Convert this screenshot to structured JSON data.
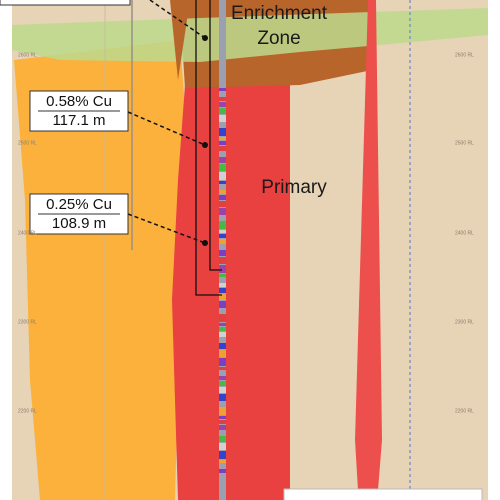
{
  "zones": {
    "enrichment": [
      "Enrichment",
      "Zone"
    ],
    "primary": "Primary"
  },
  "intercepts": [
    {
      "grade": "0.58% Cu",
      "length": "117.1 m"
    },
    {
      "grade": "0.25% Cu",
      "length": "108.9 m"
    }
  ],
  "rl_labels": [
    "2600 RL",
    "2500 RL",
    "2400 RL",
    "2300 RL",
    "2200 RL"
  ]
}
